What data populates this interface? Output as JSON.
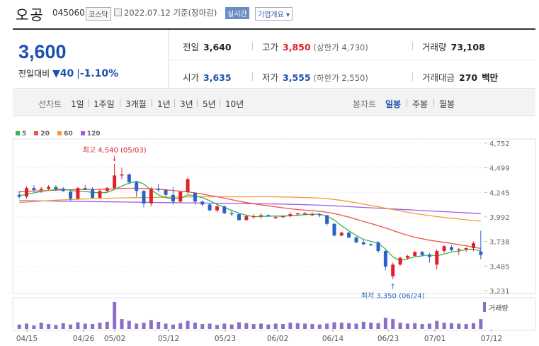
{
  "header": {
    "name": "오공",
    "code": "045060",
    "market": "코스닥",
    "date": "2022.07.12  기준(장마감)",
    "realtime": "실시간",
    "company_overview": "기업개요 ▾"
  },
  "summary": {
    "price": "3,600",
    "change_label": "전일대비",
    "change_arrow": "▼",
    "change_value": "40",
    "change_sep": "|",
    "change_pct": "-1.10%",
    "prev_close_label": "전일",
    "prev_close": "3,640",
    "high_label": "고가",
    "high": "3,850",
    "upper_limit": "(상한가 4,730)",
    "volume_label": "거래량",
    "volume": "73,108",
    "open_label": "시가",
    "open": "3,635",
    "low_label": "저가",
    "low": "3,555",
    "lower_limit": "(하한가 2,550)",
    "amount_label": "거래대금",
    "amount": "270",
    "amount_unit": "백만"
  },
  "tabs": {
    "line_label": "선차트",
    "line_periods": [
      "1일",
      "1주일",
      "3개월",
      "1년",
      "3년",
      "5년",
      "10년"
    ],
    "candle_label": "봉차트",
    "candle_periods": [
      "일봉",
      "주봉",
      "월봉"
    ],
    "active_candle": "일봉"
  },
  "legend": [
    {
      "label": "5",
      "color": "#38b349"
    },
    {
      "label": "20",
      "color": "#f0514b"
    },
    {
      "label": "60",
      "color": "#f59a33"
    },
    {
      "label": "120",
      "color": "#a05ce0"
    }
  ],
  "colors": {
    "up": "#e0202a",
    "down": "#2a62c9",
    "accent": "#1d4fb0"
  },
  "chart_data": {
    "type": "candlestick",
    "y_ticks": [
      "4,752",
      "4,499",
      "4,245",
      "3,992",
      "3,738",
      "3,485",
      "3,231"
    ],
    "ylim": [
      3231,
      4752
    ],
    "x_labels": [
      "04/15",
      "04/26",
      "05/02",
      "05/12",
      "05/23",
      "06/02",
      "06/14",
      "06/23",
      "07/01",
      "07/12"
    ],
    "volume_label": "거래량",
    "high_note": "최고 4,540 (05/03)",
    "low_note": "최저 3,350 (06/24)",
    "candles": [
      [
        4220,
        4260,
        4180,
        4200
      ],
      [
        4200,
        4310,
        4180,
        4290
      ],
      [
        4290,
        4320,
        4250,
        4270
      ],
      [
        4270,
        4300,
        4240,
        4280
      ],
      [
        4280,
        4320,
        4270,
        4300
      ],
      [
        4300,
        4320,
        4260,
        4280
      ],
      [
        4280,
        4300,
        4250,
        4260
      ],
      [
        4250,
        4270,
        4160,
        4180
      ],
      [
        4180,
        4300,
        4170,
        4290
      ],
      [
        4290,
        4320,
        4270,
        4280
      ],
      [
        4280,
        4300,
        4180,
        4190
      ],
      [
        4190,
        4280,
        4180,
        4260
      ],
      [
        4260,
        4300,
        4250,
        4290
      ],
      [
        4290,
        4540,
        4280,
        4420
      ],
      [
        4420,
        4500,
        4380,
        4430
      ],
      [
        4430,
        4440,
        4330,
        4350
      ],
      [
        4350,
        4360,
        4200,
        4260
      ],
      [
        4260,
        4270,
        4090,
        4130
      ],
      [
        4130,
        4300,
        4100,
        4280
      ],
      [
        4280,
        4330,
        4250,
        4270
      ],
      [
        4270,
        4280,
        4200,
        4220
      ],
      [
        4220,
        4300,
        4120,
        4150
      ],
      [
        4150,
        4260,
        4140,
        4250
      ],
      [
        4250,
        4400,
        4230,
        4380
      ],
      [
        4240,
        4250,
        4120,
        4150
      ],
      [
        4150,
        4160,
        4100,
        4120
      ],
      [
        4120,
        4130,
        4050,
        4060
      ],
      [
        4060,
        4120,
        4040,
        4100
      ],
      [
        4100,
        4110,
        4020,
        4030
      ],
      [
        4030,
        4060,
        4000,
        4020
      ],
      [
        4020,
        4030,
        3950,
        3960
      ],
      [
        3960,
        4010,
        3950,
        4000
      ],
      [
        4000,
        4020,
        3970,
        4000
      ],
      [
        4000,
        4030,
        3970,
        4010
      ],
      [
        4010,
        4020,
        3990,
        4000
      ],
      [
        3980,
        4000,
        3970,
        3990
      ],
      [
        3990,
        4010,
        3980,
        4000
      ],
      [
        4000,
        4040,
        3990,
        4020
      ],
      [
        4020,
        4030,
        4000,
        4030
      ],
      [
        4030,
        4040,
        4010,
        4030
      ],
      [
        4010,
        4040,
        4000,
        4020
      ],
      [
        4020,
        4030,
        3990,
        4010
      ],
      [
        4010,
        4010,
        3900,
        3920
      ],
      [
        3920,
        3930,
        3790,
        3800
      ],
      [
        3800,
        3840,
        3790,
        3830
      ],
      [
        3830,
        3840,
        3770,
        3780
      ],
      [
        3780,
        3790,
        3720,
        3730
      ],
      [
        3730,
        3760,
        3700,
        3710
      ],
      [
        3710,
        3720,
        3690,
        3700
      ],
      [
        3730,
        3740,
        3620,
        3640
      ],
      [
        3640,
        3650,
        3440,
        3480
      ],
      [
        3380,
        3520,
        3350,
        3500
      ],
      [
        3500,
        3580,
        3490,
        3570
      ],
      [
        3570,
        3600,
        3550,
        3590
      ],
      [
        3590,
        3640,
        3580,
        3630
      ],
      [
        3630,
        3640,
        3590,
        3600
      ],
      [
        3600,
        3620,
        3520,
        3580
      ],
      [
        3500,
        3660,
        3450,
        3640
      ],
      [
        3640,
        3700,
        3620,
        3690
      ],
      [
        3680,
        3700,
        3640,
        3650
      ],
      [
        3650,
        3670,
        3600,
        3660
      ],
      [
        3660,
        3680,
        3630,
        3670
      ],
      [
        3670,
        3740,
        3640,
        3720
      ],
      [
        3635,
        3850,
        3555,
        3600
      ]
    ],
    "ma5": [
      4210,
      4225,
      4240,
      4255,
      4265,
      4275,
      4280,
      4265,
      4255,
      4255,
      4245,
      4240,
      4245,
      4275,
      4310,
      4340,
      4360,
      4330,
      4270,
      4220,
      4190,
      4180,
      4180,
      4220,
      4210,
      4190,
      4160,
      4120,
      4090,
      4060,
      4030,
      4010,
      3995,
      3995,
      4000,
      4000,
      4000,
      4005,
      4010,
      4015,
      4020,
      4020,
      4000,
      3960,
      3900,
      3850,
      3800,
      3760,
      3740,
      3720,
      3660,
      3580,
      3540,
      3560,
      3580,
      3590,
      3600,
      3590,
      3610,
      3630,
      3640,
      3655,
      3660,
      3640
    ],
    "ma20": [
      4250,
      4255,
      4260,
      4262,
      4265,
      4268,
      4270,
      4272,
      4274,
      4275,
      4276,
      4277,
      4278,
      4282,
      4286,
      4288,
      4288,
      4286,
      4282,
      4278,
      4272,
      4264,
      4256,
      4250,
      4240,
      4228,
      4214,
      4200,
      4186,
      4170,
      4154,
      4140,
      4128,
      4116,
      4106,
      4096,
      4086,
      4076,
      4068,
      4062,
      4056,
      4050,
      4040,
      4026,
      4010,
      3990,
      3968,
      3945,
      3924,
      3902,
      3878,
      3852,
      3826,
      3802,
      3782,
      3766,
      3752,
      3740,
      3730,
      3718,
      3706,
      3694,
      3680,
      3666
    ],
    "ma60": [
      4140,
      4145,
      4150,
      4155,
      4160,
      4165,
      4168,
      4171,
      4174,
      4177,
      4180,
      4182,
      4184,
      4186,
      4188,
      4190,
      4191,
      4192,
      4193,
      4194,
      4195,
      4196,
      4197,
      4198,
      4199,
      4200,
      4200,
      4200,
      4200,
      4200,
      4200,
      4200,
      4200,
      4200,
      4200,
      4199,
      4198,
      4196,
      4194,
      4192,
      4190,
      4186,
      4180,
      4172,
      4162,
      4150,
      4138,
      4124,
      4110,
      4096,
      4082,
      4068,
      4054,
      4040,
      4028,
      4016,
      4006,
      3996,
      3986,
      3978,
      3970,
      3962,
      3955,
      3948
    ],
    "ma120": [
      4160,
      4159,
      4158,
      4157,
      4156,
      4155,
      4154,
      4153,
      4152,
      4151,
      4150,
      4149,
      4148,
      4147,
      4146,
      4145,
      4144,
      4143,
      4142,
      4141,
      4140,
      4139,
      4138,
      4137,
      4136,
      4135,
      4134,
      4133,
      4132,
      4131,
      4130,
      4129,
      4128,
      4127,
      4126,
      4125,
      4124,
      4122,
      4120,
      4118,
      4116,
      4113,
      4110,
      4106,
      4102,
      4098,
      4094,
      4090,
      4086,
      4082,
      4078,
      4074,
      4070,
      4066,
      4062,
      4058,
      4054,
      4050,
      4046,
      4042,
      4038,
      4034,
      4030,
      4026
    ],
    "volumes": [
      10,
      12,
      8,
      14,
      11,
      9,
      13,
      10,
      15,
      12,
      11,
      14,
      16,
      60,
      22,
      18,
      12,
      14,
      20,
      16,
      12,
      10,
      13,
      18,
      14,
      11,
      12,
      9,
      12,
      10,
      15,
      13,
      11,
      12,
      10,
      12,
      11,
      14,
      13,
      12,
      11,
      10,
      12,
      15,
      14,
      13,
      12,
      16,
      14,
      13,
      25,
      22,
      14,
      12,
      13,
      11,
      12,
      18,
      14,
      13,
      12,
      11,
      13,
      22
    ]
  }
}
